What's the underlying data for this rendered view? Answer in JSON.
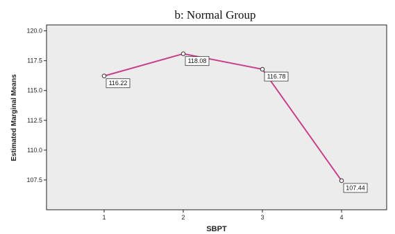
{
  "chart_data": {
    "type": "line",
    "title": "b: Normal Group",
    "xlabel": "SBPT",
    "ylabel": "Estimated Marginal Means",
    "categories": [
      "1",
      "2",
      "3",
      "4"
    ],
    "series": [
      {
        "values": [
          116.22,
          118.08,
          116.78,
          107.44
        ]
      }
    ],
    "data_labels": [
      "116.22",
      "118.08",
      "116.78",
      "107.44"
    ],
    "y_ticks": [
      "107.5",
      "110.0",
      "112.5",
      "115.0",
      "117.5",
      "120.0"
    ],
    "ylim": [
      105.0,
      120.5
    ],
    "grid": false,
    "colors": {
      "plot_bg": "#ececec",
      "line": "#c8408a",
      "marker_edge": "#333333"
    }
  }
}
